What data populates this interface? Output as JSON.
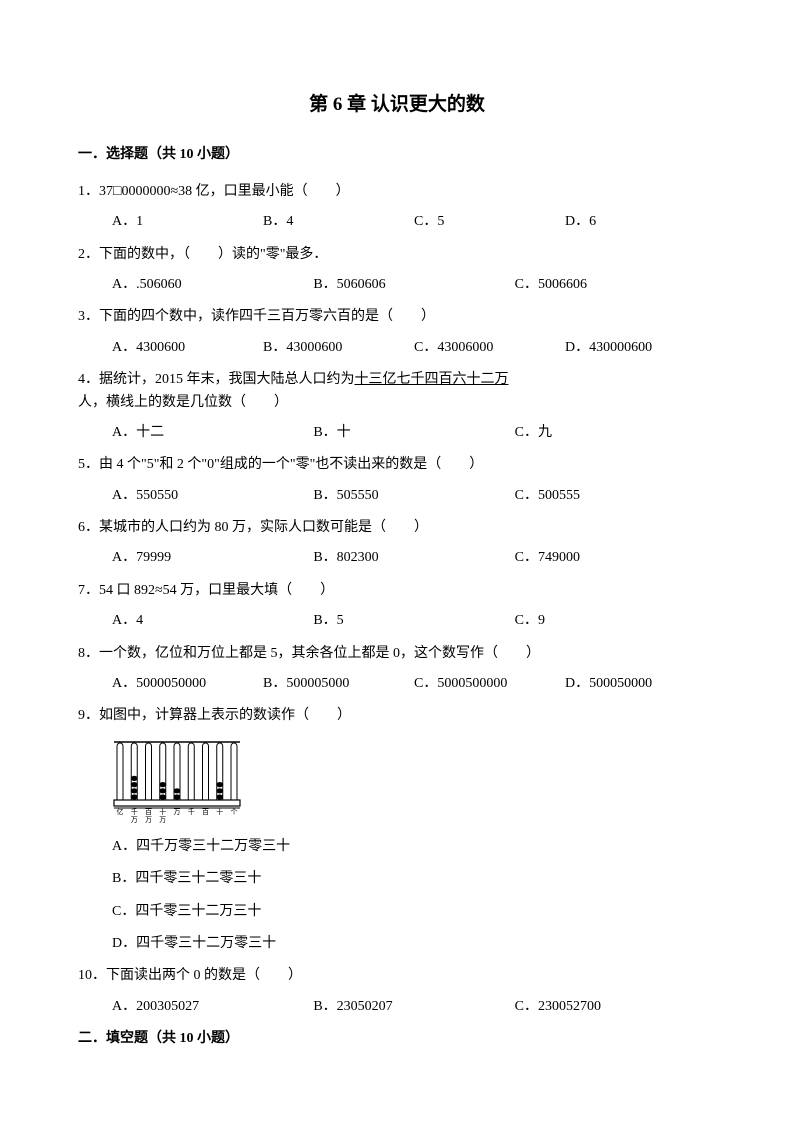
{
  "title": "第 6 章  认识更大的数",
  "section1_header": "一．选择题（共 10 小题）",
  "section2_header": "二．填空题（共 10 小题）",
  "q1": {
    "text": "1．37□0000000≈38 亿，口里最小能（　　）",
    "a": "A．1",
    "b": "B．4",
    "c": "C．5",
    "d": "D．6"
  },
  "q2": {
    "text": "2．下面的数中，（　　）读的\"零\"最多．",
    "a": "A．.506060",
    "b": "B．5060606",
    "c": "C．5006606"
  },
  "q3": {
    "text": "3．下面的四个数中，读作四千三百万零六百的是（　　）",
    "a": "A．4300600",
    "b": "B．43000600",
    "c": "C．43006000",
    "d": "D．430000600"
  },
  "q4": {
    "pre": "4．据统计，2015 年末，我国大陆总人口约为",
    "underlined": "十三亿七千四百六十二万",
    "post": "人，横线上的数是几位数（　　）",
    "a": "A．十二",
    "b": "B．十",
    "c": "C．九"
  },
  "q5": {
    "text": "5．由 4 个\"5\"和 2 个\"0\"组成的一个\"零\"也不读出来的数是（　　）",
    "a": "A．550550",
    "b": "B．505550",
    "c": "C．500555"
  },
  "q6": {
    "text": "6．某城市的人口约为 80 万，实际人口数可能是（　　）",
    "a": "A．79999",
    "b": "B．802300",
    "c": "C．749000"
  },
  "q7": {
    "text": "7．54 口 892≈54 万，口里最大填（　　）",
    "a": "A．4",
    "b": "B．5",
    "c": "C．9"
  },
  "q8": {
    "text": "8．一个数，亿位和万位上都是 5，其余各位上都是 0，这个数写作（　　）",
    "a": "A．5000050000",
    "b": "B．500005000",
    "c": "C．5000500000",
    "d": "D．500050000"
  },
  "q9": {
    "text": "9．如图中，计算器上表示的数读作（　　）",
    "a": "A．四千万零三十二万零三十",
    "b": "B．四千零三十二零三十",
    "c": "C．四千零三十二万三十",
    "d": "D．四千零三十二万零三十"
  },
  "q10": {
    "text": "10．下面读出两个 0 的数是（　　）",
    "a": "A．200305027",
    "b": "B．23050207",
    "c": "C．230052700"
  },
  "abacus": {
    "labels_top": [
      "亿",
      "千",
      "百",
      "十",
      "万",
      "千",
      "百",
      "十",
      "个"
    ],
    "labels_bot": [
      "",
      "万",
      "万",
      "万",
      "",
      "",
      "",
      "",
      ""
    ],
    "beads": [
      0,
      4,
      0,
      3,
      2,
      0,
      0,
      3,
      0
    ],
    "width": 130,
    "height": 90,
    "rod_color": "#000000",
    "bead_color": "#000000",
    "frame_color": "#000000",
    "bg": "#ffffff",
    "font_size": 7
  }
}
